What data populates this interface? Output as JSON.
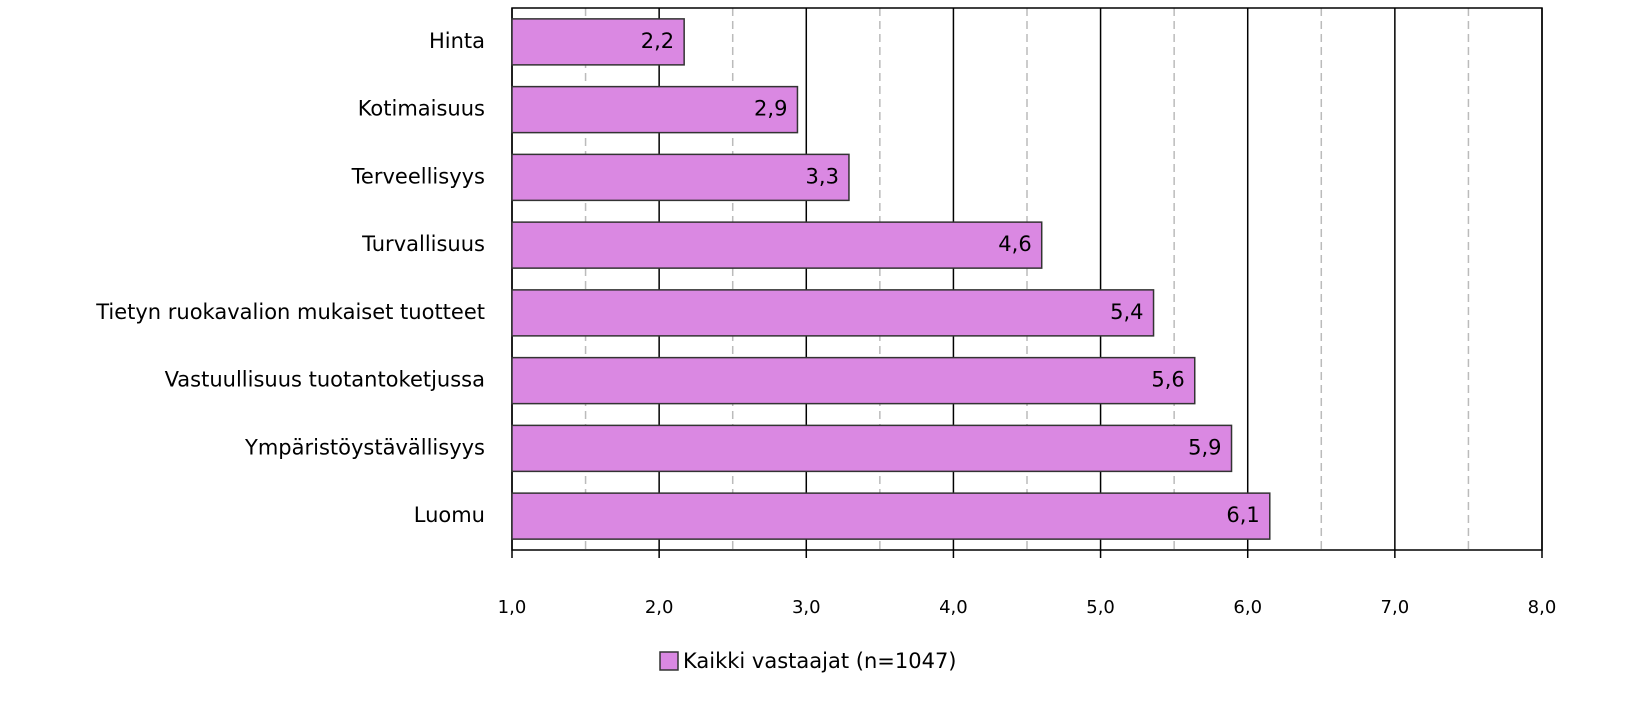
{
  "chart_data": {
    "type": "bar",
    "orientation": "horizontal",
    "categories": [
      "Hinta",
      "Kotimaisuus",
      "Terveellisyys",
      "Turvallisuus",
      "Tietyn ruokavalion mukaiset tuotteet",
      "Vastuullisuus tuotantoketjussa",
      "Ympäristöystävällisyys",
      "Luomu"
    ],
    "series": [
      {
        "name": "Kaikki vastaajat (n=1047)",
        "color": "#da88e2",
        "values": [
          2.17,
          2.94,
          3.29,
          4.6,
          5.36,
          5.64,
          5.89,
          6.15
        ],
        "value_labels": [
          "2,2",
          "2,9",
          "3,3",
          "4,6",
          "5,4",
          "5,6",
          "5,9",
          "6,1"
        ]
      }
    ],
    "xlim": [
      1,
      8
    ],
    "xticks": [
      {
        "value": 1,
        "label": "1,0"
      },
      {
        "value": 2,
        "label": "2,0"
      },
      {
        "value": 3,
        "label": "3,0"
      },
      {
        "value": 4,
        "label": "4,0"
      },
      {
        "value": 5,
        "label": "5,0"
      },
      {
        "value": 6,
        "label": "6,0"
      },
      {
        "value": 7,
        "label": "7,0"
      },
      {
        "value": 8,
        "label": "8,0"
      }
    ],
    "minor_xticks": [
      1.5,
      2.5,
      3.5,
      4.5,
      5.5,
      6.5,
      7.5
    ],
    "grid": true,
    "legend": "bottom"
  }
}
